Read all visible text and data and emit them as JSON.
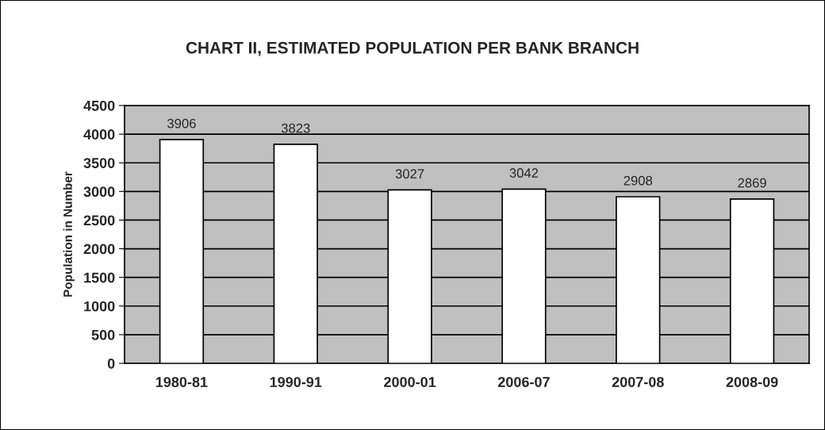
{
  "chart_data": {
    "type": "bar",
    "title": "CHART II, ESTIMATED POPULATION PER BANK BRANCH",
    "ylabel": "Population in Number",
    "categories": [
      "1980-81",
      "1990-91",
      "2000-01",
      "2006-07",
      "2007-08",
      "2008-09"
    ],
    "values": [
      3906,
      3823,
      3027,
      3042,
      2908,
      2869
    ],
    "color": "#ffffff",
    "ylim": [
      0,
      4500
    ],
    "yticks": [
      0,
      500,
      1000,
      1500,
      2000,
      2500,
      3000,
      3500,
      4000,
      4500
    ],
    "grid": "y",
    "data_labels": true
  }
}
